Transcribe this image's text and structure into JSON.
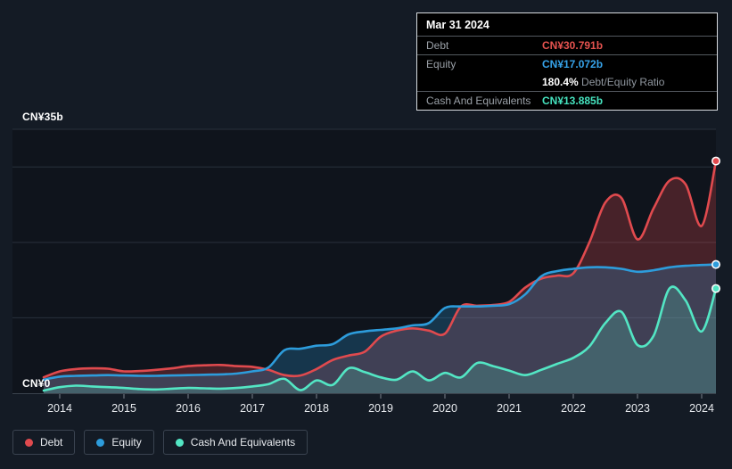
{
  "axis": {
    "y_max_label": "CN¥35b",
    "y_zero_label": "CN¥0",
    "years": [
      "2014",
      "2015",
      "2016",
      "2017",
      "2018",
      "2019",
      "2020",
      "2021",
      "2022",
      "2023",
      "2024"
    ]
  },
  "tooltip": {
    "date": "Mar 31 2024",
    "debt_label": "Debt",
    "debt_value": "CN¥30.791b",
    "equity_label": "Equity",
    "equity_value": "CN¥17.072b",
    "ratio_value": "180.4%",
    "ratio_label": "Debt/Equity Ratio",
    "cash_label": "Cash And Equivalents",
    "cash_value": "CN¥13.885b"
  },
  "legend": {
    "items": [
      {
        "label": "Debt",
        "color": "#E04A4E"
      },
      {
        "label": "Equity",
        "color": "#2D9CDB"
      },
      {
        "label": "Cash And Equivalents",
        "color": "#53E6C4"
      }
    ]
  },
  "colors": {
    "page_bg": "#141B25",
    "plot_bg": "#0F141C",
    "gridline": "#29313D",
    "axis_line": "#3A424C",
    "tick": "#58606A",
    "year_label": "#E7EAEE",
    "debt": "#E04A4E",
    "equity": "#2D9CDB",
    "cash": "#53E6C4"
  },
  "chart_data": {
    "type": "area",
    "title": "Debt to Equity History (CN¥ billions)",
    "xlabel": "",
    "ylabel": "CN¥b",
    "ylim": [
      0,
      35
    ],
    "xlim": [
      2013.3,
      2024.3
    ],
    "grid": true,
    "gridline_values": [
      35,
      30,
      20,
      10
    ],
    "legend_position": "bottom-left",
    "x": [
      2013.75,
      2014.0,
      2014.25,
      2014.5,
      2014.75,
      2015.0,
      2015.25,
      2015.5,
      2015.75,
      2016.0,
      2016.25,
      2016.5,
      2016.75,
      2017.0,
      2017.25,
      2017.5,
      2017.75,
      2018.0,
      2018.25,
      2018.5,
      2018.75,
      2019.0,
      2019.25,
      2019.5,
      2019.75,
      2020.0,
      2020.25,
      2020.5,
      2020.75,
      2021.0,
      2021.25,
      2021.5,
      2021.75,
      2022.0,
      2022.25,
      2022.5,
      2022.75,
      2023.0,
      2023.25,
      2023.5,
      2023.75,
      2024.0,
      2024.25
    ],
    "series": [
      {
        "name": "Debt",
        "color": "#E04A4E",
        "fill": "rgba(224,74,78,0.27)",
        "values": [
          2.1,
          2.9,
          3.2,
          3.3,
          3.25,
          2.9,
          2.95,
          3.1,
          3.3,
          3.6,
          3.7,
          3.75,
          3.6,
          3.5,
          3.1,
          2.4,
          2.35,
          3.2,
          4.4,
          5.0,
          5.5,
          7.5,
          8.3,
          8.6,
          8.3,
          7.9,
          11.5,
          11.6,
          11.7,
          12.1,
          14.0,
          15.2,
          15.6,
          15.9,
          20.0,
          25.3,
          25.9,
          20.4,
          24.5,
          28.2,
          27.7,
          22.2,
          30.791
        ]
      },
      {
        "name": "Equity",
        "color": "#2D9CDB",
        "fill": "rgba(45,156,219,0.25)",
        "values": [
          1.8,
          2.2,
          2.3,
          2.35,
          2.4,
          2.35,
          2.3,
          2.3,
          2.35,
          2.4,
          2.45,
          2.5,
          2.6,
          2.9,
          3.4,
          5.7,
          5.9,
          6.3,
          6.5,
          7.8,
          8.2,
          8.4,
          8.6,
          9.0,
          9.3,
          11.3,
          11.5,
          11.5,
          11.6,
          11.8,
          13.1,
          15.5,
          16.2,
          16.5,
          16.7,
          16.7,
          16.5,
          16.1,
          16.3,
          16.7,
          16.9,
          17.0,
          17.072
        ]
      },
      {
        "name": "Cash And Equivalents",
        "color": "#53E6C4",
        "fill": "rgba(83,230,196,0.20)",
        "values": [
          0.35,
          0.8,
          1.0,
          0.9,
          0.8,
          0.7,
          0.55,
          0.5,
          0.6,
          0.7,
          0.65,
          0.6,
          0.7,
          0.9,
          1.2,
          1.9,
          0.4,
          1.7,
          1.1,
          3.3,
          2.8,
          2.1,
          1.8,
          2.9,
          1.7,
          2.7,
          2.1,
          4.0,
          3.6,
          3.0,
          2.4,
          3.1,
          3.9,
          4.7,
          6.2,
          9.3,
          10.8,
          6.4,
          7.6,
          13.9,
          12.3,
          8.2,
          13.885
        ]
      }
    ],
    "end_markers": {
      "Debt": 30.791,
      "Equity": 17.072,
      "Cash And Equivalents": 13.885
    }
  }
}
